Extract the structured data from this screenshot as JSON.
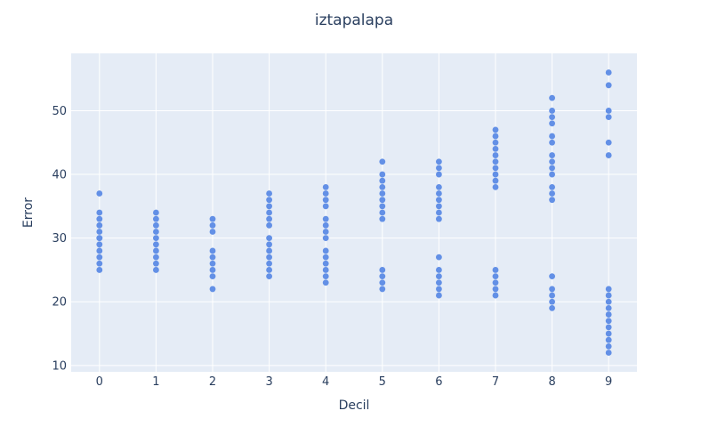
{
  "chart_data": {
    "type": "scatter",
    "title": "iztapalapa",
    "xlabel": "Decil",
    "ylabel": "Error",
    "xlim": [
      -0.5,
      9.5
    ],
    "ylim": [
      9,
      59
    ],
    "xticks": [
      0,
      1,
      2,
      3,
      4,
      5,
      6,
      7,
      8,
      9
    ],
    "yticks": [
      10,
      20,
      30,
      40,
      50
    ],
    "grid": true,
    "marker_color": "#6390e6",
    "plot_bg": "#e5ecf6",
    "points": [
      {
        "x": 0,
        "ys": [
          37,
          34,
          33,
          32,
          31,
          30,
          30,
          29,
          28,
          27,
          26,
          25
        ]
      },
      {
        "x": 1,
        "ys": [
          34,
          33,
          32,
          31,
          30,
          29,
          28,
          27,
          26,
          25
        ]
      },
      {
        "x": 2,
        "ys": [
          33,
          32,
          31,
          28,
          27,
          26,
          25,
          24,
          22
        ]
      },
      {
        "x": 3,
        "ys": [
          37,
          36,
          35,
          34,
          33,
          32,
          30,
          29,
          28,
          27,
          26,
          25,
          24
        ]
      },
      {
        "x": 4,
        "ys": [
          38,
          37,
          36,
          35,
          33,
          32,
          31,
          30,
          28,
          27,
          26,
          25,
          24,
          23
        ]
      },
      {
        "x": 5,
        "ys": [
          42,
          40,
          39,
          38,
          37,
          36,
          35,
          34,
          33,
          25,
          24,
          23,
          22
        ]
      },
      {
        "x": 6,
        "ys": [
          42,
          41,
          40,
          38,
          37,
          36,
          35,
          34,
          33,
          27,
          25,
          24,
          23,
          22,
          21
        ]
      },
      {
        "x": 7,
        "ys": [
          47,
          46,
          45,
          44,
          43,
          42,
          41,
          40,
          39,
          38,
          25,
          24,
          23,
          22,
          21
        ]
      },
      {
        "x": 8,
        "ys": [
          52,
          50,
          49,
          48,
          46,
          45,
          43,
          42,
          41,
          40,
          38,
          37,
          36,
          24,
          22,
          21,
          20,
          19
        ]
      },
      {
        "x": 9,
        "ys": [
          56,
          54,
          50,
          49,
          45,
          43,
          22,
          21,
          20,
          19,
          18,
          17,
          16,
          15,
          14,
          13,
          12
        ]
      }
    ]
  }
}
